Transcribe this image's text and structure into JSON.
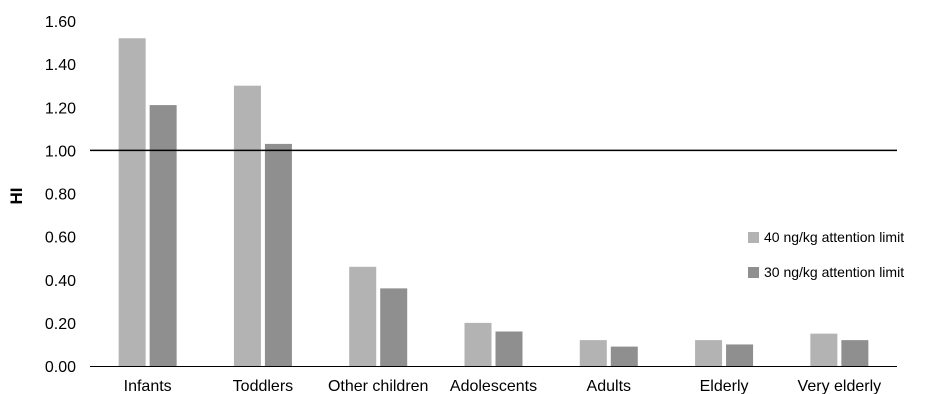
{
  "chart_data": {
    "type": "bar",
    "title": "",
    "xlabel": "",
    "ylabel": "HI",
    "ylim": [
      0,
      1.6
    ],
    "yticks": [
      "0.00",
      "0.20",
      "0.40",
      "0.60",
      "0.80",
      "1.00",
      "1.20",
      "1.40",
      "1.60"
    ],
    "categories": [
      "Infants",
      "Toddlers",
      "Other children",
      "Adolescents",
      "Adults",
      "Elderly",
      "Very elderly"
    ],
    "series": [
      {
        "name": "40 ng/kg attention limit",
        "color": "#b3b3b3",
        "values": [
          1.52,
          1.3,
          0.46,
          0.2,
          0.12,
          0.12,
          0.15
        ]
      },
      {
        "name": "30 ng/kg attention limit",
        "color": "#8f8f8f",
        "values": [
          1.21,
          1.03,
          0.36,
          0.16,
          0.09,
          0.1,
          0.12
        ]
      }
    ],
    "reference_line": 1.0,
    "grid": false,
    "legend_position": "right"
  }
}
